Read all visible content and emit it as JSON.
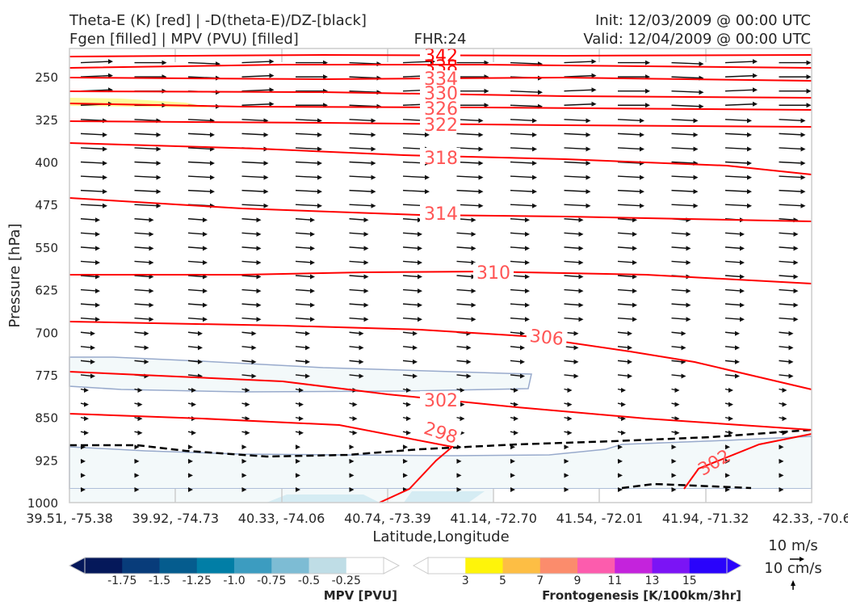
{
  "header": {
    "title_line1": "Theta-E (K) [red] | -D(theta-E)/DZ-[black]",
    "title_line2": "Fgen [filled] | MPV (PVU) [filled]",
    "fhr": "FHR:24",
    "init": "Init: 12/03/2009 @ 00:00 UTC",
    "valid": "Valid: 12/04/2009 @ 00:00 UTC"
  },
  "chart_data": {
    "type": "cross-section",
    "xlabel": "Latitude,Longitude",
    "ylabel": "Pressure [hPa]",
    "x_ticks": [
      "39.51, -75.38",
      "39.92, -74.73",
      "40.33, -74.06",
      "40.74, -73.39",
      "41.14, -72.70",
      "41.54, -72.01",
      "41.94, -71.32",
      "42.33, -70.6"
    ],
    "y_ticks": [
      "250",
      "325",
      "400",
      "475",
      "550",
      "625",
      "700",
      "775",
      "850",
      "925",
      "1000"
    ],
    "ylim": [
      1000,
      200
    ],
    "theta_e_labels": [
      "342",
      "338",
      "334",
      "330",
      "326",
      "322",
      "318",
      "314",
      "310",
      "306",
      "302",
      "298",
      "302"
    ],
    "colors": {
      "theta_e": "#ff0000",
      "theta_e_label": "#ff5555",
      "stability": "#000000",
      "mpv_outline": "#98aacc",
      "mpv_fill": "#f3f9fa"
    },
    "wind_vector_scale": {
      "horizontal": "10 m/s",
      "vertical": "10 cm/s"
    }
  },
  "colorbars": {
    "mpv": {
      "label": "MPV [PVU]",
      "ticks": [
        "-1.75",
        "-1.5",
        "-1.25",
        "-1.0",
        "-0.75",
        "-0.5",
        "-0.25"
      ],
      "colors": [
        "#05185a",
        "#083c7a",
        "#055c8e",
        "#017ea6",
        "#3c9cc0",
        "#7dbcd4",
        "#bfdde6",
        "#ffffff"
      ]
    },
    "fgen": {
      "label": "Frontogenesis [K/100km/3hr]",
      "ticks": [
        "3",
        "5",
        "7",
        "9",
        "11",
        "13",
        "15"
      ],
      "colors": [
        "#ffffff",
        "#fef40a",
        "#fdbe44",
        "#fb8c6c",
        "#fc5cad",
        "#c423dc",
        "#7b14f5",
        "#2a03fb"
      ]
    }
  }
}
